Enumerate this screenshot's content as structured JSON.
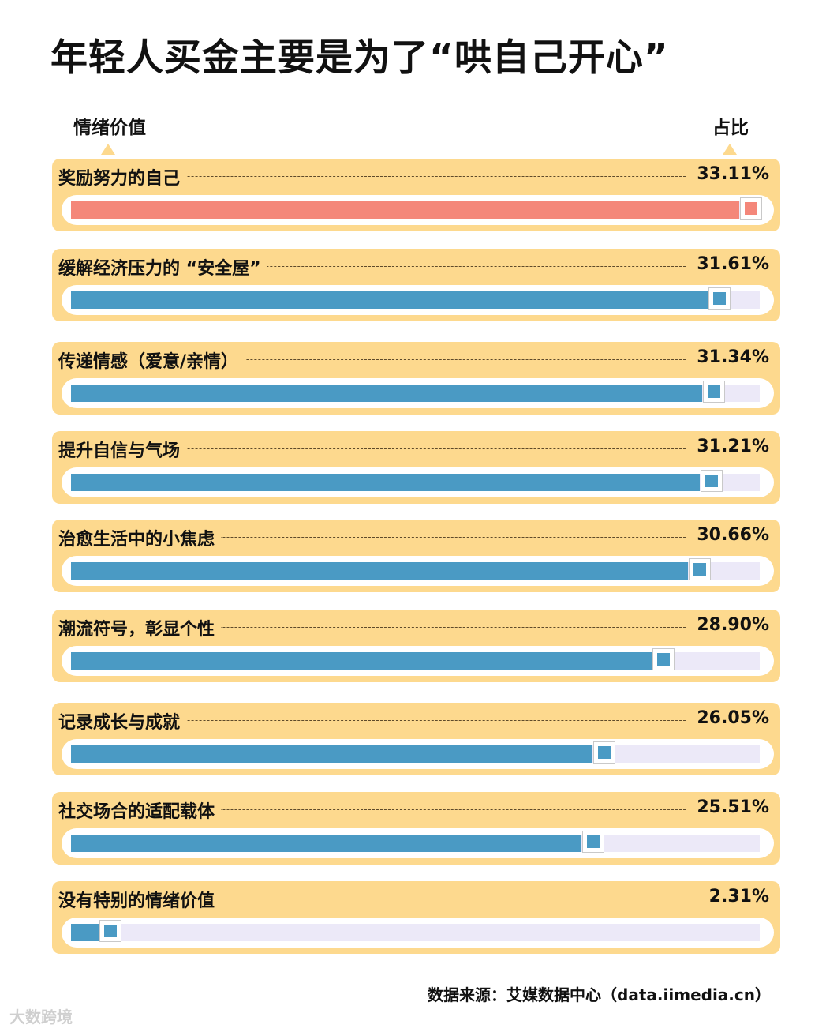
{
  "title": "年轻人买金主要是为了“哄自己开心”",
  "watermark": "大数跨境",
  "source": "数据来源：艾媒数据中心（data.iimedia.cn）",
  "colors": {
    "highlight": "#f4877a",
    "bar": "#4a9ac4",
    "panel": "#fdd98e",
    "track": "#ece9f8"
  },
  "chart_data": {
    "type": "bar",
    "orientation": "horizontal",
    "xlabel": "情绪价值",
    "ylabel": "占比",
    "xlim": [
      0,
      33.11
    ],
    "grid": false,
    "categories": [
      "奖励努力的自己",
      "缓解经济压力的 “安全屋”",
      "传递情感（爱意/亲情）",
      "提升自信与气场",
      "治愈生活中的小焦虑",
      "潮流符号，彰显个性",
      "记录成长与成就",
      "社交场合的适配载体",
      "没有特别的情绪价值"
    ],
    "values": [
      33.11,
      31.61,
      31.34,
      31.21,
      30.66,
      28.9,
      26.05,
      25.51,
      2.31
    ],
    "value_labels": [
      "33.11%",
      "31.61%",
      "31.34%",
      "31.21%",
      "30.66%",
      "28.90%",
      "26.05%",
      "25.51%",
      "2.31%"
    ]
  }
}
